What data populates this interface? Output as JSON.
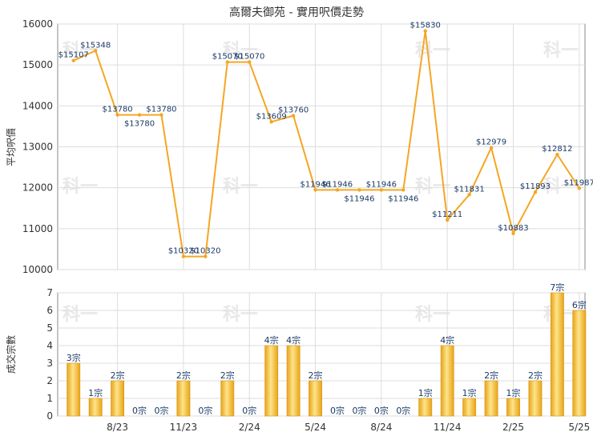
{
  "title": "高爾夫御苑 - 實用呎價走勢",
  "watermark": "科一",
  "colors": {
    "line": "#f5a623",
    "bar_light": "#fde48a",
    "bar_dark": "#e8a317",
    "grid": "#dddddd",
    "axis": "#888888"
  },
  "chart_data": [
    {
      "type": "line",
      "ylabel": "平均呎價",
      "ylim": [
        10000,
        16000
      ],
      "yticks": [
        "10000",
        "11000",
        "12000",
        "13000",
        "14000",
        "15000",
        "16000"
      ],
      "ytick_values": [
        10000,
        11000,
        12000,
        13000,
        14000,
        15000,
        16000
      ],
      "points": [
        {
          "i": 0,
          "value": 15107,
          "label": "$15107"
        },
        {
          "i": 1,
          "value": 15348,
          "label": "$15348"
        },
        {
          "i": 2,
          "value": 13780,
          "label": "$13780"
        },
        {
          "i": 3,
          "value": 13780,
          "label": "$13780"
        },
        {
          "i": 4,
          "value": 13780,
          "label": "$13780"
        },
        {
          "i": 5,
          "value": 10320,
          "label": "$10320"
        },
        {
          "i": 6,
          "value": 10320,
          "label": "$10320"
        },
        {
          "i": 7,
          "value": 15070,
          "label": "$15070"
        },
        {
          "i": 8,
          "value": 15070,
          "label": "$15070"
        },
        {
          "i": 9,
          "value": 13609,
          "label": "$13609"
        },
        {
          "i": 10,
          "value": 13760,
          "label": "$13760"
        },
        {
          "i": 11,
          "value": 11946,
          "label": "$11946"
        },
        {
          "i": 12,
          "value": 11946,
          "label": "$11946"
        },
        {
          "i": 13,
          "value": 11946,
          "label": "$11946"
        },
        {
          "i": 14,
          "value": 11946,
          "label": "$11946"
        },
        {
          "i": 15,
          "value": 11946,
          "label": "$11946"
        },
        {
          "i": 16,
          "value": 15830,
          "label": "$15830"
        },
        {
          "i": 17,
          "value": 11211,
          "label": "$11211"
        },
        {
          "i": 18,
          "value": 11831,
          "label": "$11831"
        },
        {
          "i": 19,
          "value": 12979,
          "label": "$12979"
        },
        {
          "i": 20,
          "value": 10883,
          "label": "$10883"
        },
        {
          "i": 21,
          "value": 11893,
          "label": "$11893"
        },
        {
          "i": 22,
          "value": 12812,
          "label": "$12812"
        },
        {
          "i": 23,
          "value": 11987,
          "label": "$11987"
        }
      ]
    },
    {
      "type": "bar",
      "ylabel": "成交宗數",
      "ylim": [
        0,
        7
      ],
      "yticks": [
        "0",
        "1",
        "2",
        "3",
        "4",
        "5",
        "6",
        "7"
      ],
      "values": [
        3,
        1,
        2,
        0,
        0,
        2,
        0,
        2,
        0,
        4,
        4,
        2,
        0,
        0,
        0,
        0,
        1,
        4,
        1,
        2,
        1,
        2,
        7,
        6
      ],
      "labels": [
        "3宗",
        "1宗",
        "2宗",
        "0宗",
        "0宗",
        "2宗",
        "0宗",
        "2宗",
        "0宗",
        "4宗",
        "4宗",
        "2宗",
        "0宗",
        "0宗",
        "0宗",
        "0宗",
        "1宗",
        "4宗",
        "1宗",
        "2宗",
        "1宗",
        "2宗",
        "7宗",
        "6宗"
      ],
      "xticks": [
        {
          "i": 2,
          "label": "8/23"
        },
        {
          "i": 5,
          "label": "11/23"
        },
        {
          "i": 8,
          "label": "2/24"
        },
        {
          "i": 11,
          "label": "5/24"
        },
        {
          "i": 14,
          "label": "8/24"
        },
        {
          "i": 17,
          "label": "11/24"
        },
        {
          "i": 20,
          "label": "2/25"
        },
        {
          "i": 23,
          "label": "5/25"
        }
      ]
    }
  ]
}
